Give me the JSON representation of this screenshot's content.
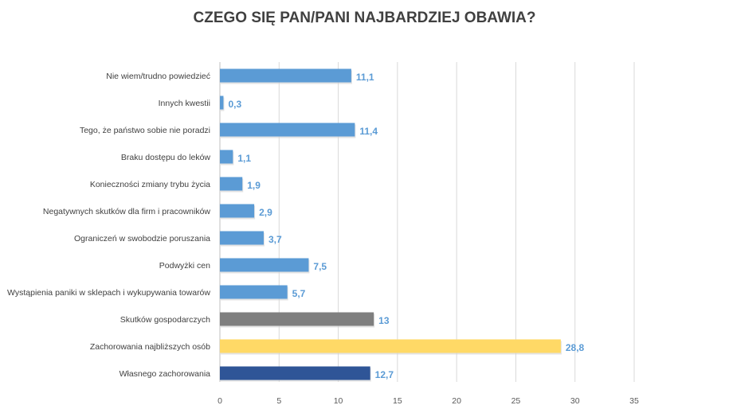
{
  "chart_data": {
    "type": "bar",
    "orientation": "horizontal",
    "title": "CZEGO SIĘ PAN/PANI NAJBARDZIEJ OBAWIA?",
    "categories": [
      "Nie wiem/trudno powiedzieć",
      "Innych kwestii",
      "Tego, że państwo sobie nie poradzi",
      "Braku dostępu do leków",
      "Konieczności zmiany trybu życia",
      "Negatywnych skutków dla firm i pracowników",
      "Ograniczeń w swobodzie poruszania",
      "Podwyżki cen",
      "Wystąpienia paniki w sklepach i wykupywania towarów",
      "Skutków gospodarczych",
      "Zachorowania najbliższych osób",
      "Własnego zachorowania"
    ],
    "values": [
      11.1,
      0.3,
      11.4,
      1.1,
      1.9,
      2.9,
      3.7,
      7.5,
      5.7,
      13,
      28.8,
      12.7
    ],
    "value_labels": [
      "11,1",
      "0,3",
      "11,4",
      "1,1",
      "1,9",
      "2,9",
      "3,7",
      "7,5",
      "5,7",
      "13",
      "28,8",
      "12,7"
    ],
    "bar_colors": [
      "#5b9bd5",
      "#5b9bd5",
      "#5b9bd5",
      "#5b9bd5",
      "#5b9bd5",
      "#5b9bd5",
      "#5b9bd5",
      "#5b9bd5",
      "#5b9bd5",
      "#7f7f7f",
      "#ffd966",
      "#2f5597"
    ],
    "xlim": [
      0,
      35
    ],
    "xticks": [
      0,
      5,
      10,
      15,
      20,
      25,
      30,
      35
    ],
    "grid": true,
    "legend": "none",
    "xlabel": "",
    "ylabel": ""
  }
}
